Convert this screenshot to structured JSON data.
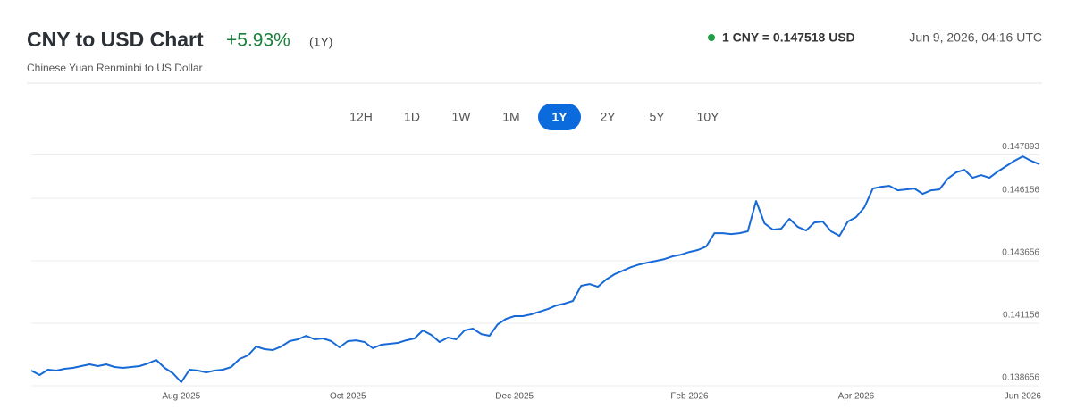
{
  "header": {
    "title": "CNY to USD Chart",
    "change": "+5.93%",
    "period": "(1Y)",
    "subtitle": "Chinese Yuan Renminbi to US Dollar",
    "rate": "1 CNY = 0.147518 USD",
    "timestamp": "Jun 9, 2026, 04:16 UTC"
  },
  "ranges": {
    "buttons": [
      "12H",
      "1D",
      "1W",
      "1M",
      "1Y",
      "2Y",
      "5Y",
      "10Y"
    ],
    "selected": "1Y"
  },
  "chart_data": {
    "type": "line",
    "color": "#1669d6",
    "categories": [
      null,
      null,
      null,
      null,
      null,
      null,
      null,
      null,
      null,
      null,
      null,
      null,
      null,
      null,
      null,
      null,
      null,
      null,
      "Aug 2025",
      null,
      null,
      null,
      null,
      null,
      null,
      null,
      null,
      null,
      null,
      null,
      null,
      null,
      null,
      null,
      null,
      null,
      null,
      null,
      "Oct 2025",
      null,
      null,
      null,
      null,
      null,
      null,
      null,
      null,
      null,
      null,
      null,
      null,
      null,
      null,
      null,
      null,
      null,
      null,
      null,
      "Dec 2025",
      null,
      null,
      null,
      null,
      null,
      null,
      null,
      null,
      null,
      null,
      null,
      null,
      null,
      null,
      null,
      null,
      null,
      null,
      null,
      null,
      "Feb 2026",
      null,
      null,
      null,
      null,
      null,
      null,
      null,
      null,
      null,
      null,
      null,
      null,
      null,
      null,
      null,
      null,
      null,
      null,
      null,
      "Apr 2026",
      null,
      null,
      null,
      null,
      null,
      null,
      null,
      null,
      null,
      null,
      null,
      null,
      null,
      null,
      null,
      null,
      null,
      null,
      null,
      "Jun 2026",
      null,
      null
    ],
    "values": [
      0.139263,
      0.139085,
      0.139299,
      0.139263,
      0.139335,
      0.13937,
      0.139442,
      0.139513,
      0.139442,
      0.139513,
      0.139406,
      0.13937,
      0.139406,
      0.139442,
      0.139549,
      0.139692,
      0.13937,
      0.139156,
      0.138799,
      0.139299,
      0.139263,
      0.139192,
      0.139263,
      0.139299,
      0.139406,
      0.139727,
      0.13987,
      0.140227,
      0.14012,
      0.140085,
      0.140227,
      0.140442,
      0.140513,
      0.140656,
      0.140513,
      0.140549,
      0.140442,
      0.140192,
      0.140442,
      0.140477,
      0.140406,
      0.140156,
      0.140299,
      0.140335,
      0.14037,
      0.140477,
      0.140549,
      0.14087,
      0.140692,
      0.140406,
      0.140585,
      0.140513,
      0.14087,
      0.140942,
      0.140727,
      0.140656,
      0.14112,
      0.141335,
      0.141442,
      0.141442,
      0.141513,
      0.14162,
      0.141727,
      0.14187,
      0.141942,
      0.142049,
      0.142656,
      0.142727,
      0.14262,
      0.142906,
      0.14312,
      0.143263,
      0.143406,
      0.143513,
      0.143585,
      0.143656,
      0.143727,
      0.143835,
      0.143906,
      0.144013,
      0.144085,
      0.144227,
      0.144763,
      0.144763,
      0.144727,
      0.144763,
      0.144835,
      0.146049,
      0.145156,
      0.144906,
      0.144942,
      0.145335,
      0.145013,
      0.14487,
      0.145192,
      0.145227,
      0.144835,
      0.144656,
      0.145227,
      0.145406,
      0.145799,
      0.146549,
      0.14662,
      0.146656,
      0.146477,
      0.146513,
      0.146549,
      0.146335,
      0.146477,
      0.146513,
      0.146942,
      0.147192,
      0.147299,
      0.146977,
      0.147085,
      0.146977,
      0.147227,
      0.147442,
      0.147656,
      0.147835,
      0.147656,
      0.147518
    ],
    "ylim": [
      0.13855,
      0.14823
    ],
    "yticks": [
      0.138656,
      0.141156,
      0.143656,
      0.146156,
      0.147893
    ],
    "grid": true
  }
}
